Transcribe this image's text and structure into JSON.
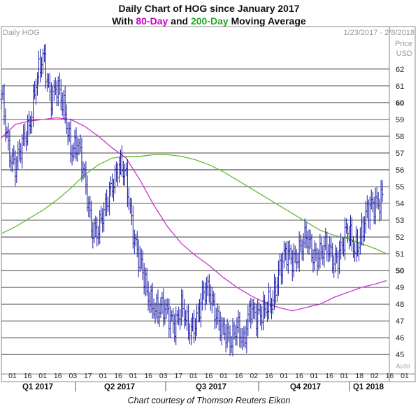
{
  "header": {
    "title_line1": "Daily Chart of HOG since January 2017",
    "title_line2_pre": "With ",
    "title_line2_ma80": "80-Day",
    "title_line2_mid": " and ",
    "title_line2_ma200": "200-Day",
    "title_line2_post": " Moving Average"
  },
  "caption": "Chart courtesy of Thomson Reuters Eikon",
  "colors": {
    "price_bars": "#1a1aa8",
    "ma80": "#cc33cc",
    "ma200": "#66bb33",
    "grid": "#222222",
    "title_ma80": "#cc00cc",
    "title_ma200": "#22aa22"
  },
  "chart_data": {
    "type": "line",
    "symbol_label": "Daily HOG",
    "date_range_label": "1/23/2017 - 2/8/2018",
    "price_label": "Price",
    "currency_label": "USD",
    "auto_label": "Auto",
    "ylim": [
      44.3,
      63.7
    ],
    "grid": true,
    "y_ticks": [
      45,
      46,
      47,
      48,
      49,
      50,
      51,
      52,
      53,
      54,
      55,
      56,
      57,
      58,
      59,
      60,
      61,
      62
    ],
    "bold_y_ticks": [
      50,
      60
    ],
    "x_ticks": [
      "01",
      "16",
      "01",
      "16",
      "03",
      "17",
      "01",
      "16",
      "01",
      "16",
      "03",
      "17",
      "01",
      "16",
      "01",
      "16",
      "02",
      "16",
      "01",
      "16",
      "01",
      "16",
      "01",
      "18",
      "02",
      "16",
      "01"
    ],
    "quarter_labels": [
      "Q1 2017",
      "Q2 2017",
      "Q3 2017",
      "Q4 2017",
      "Q1 2018"
    ],
    "series": [
      {
        "name": "Daily HOG",
        "style": "bars",
        "x": [
          0,
          5,
          10,
          15,
          20,
          25,
          30,
          35,
          40,
          45,
          50,
          55,
          60,
          65,
          70,
          75,
          80,
          85,
          90,
          95,
          100,
          105,
          110,
          115,
          120,
          125,
          130,
          135,
          140,
          145,
          150,
          155,
          160,
          165,
          170,
          175,
          180,
          185,
          190,
          195,
          200,
          205,
          210,
          215,
          220,
          225,
          230,
          235,
          240,
          245,
          250,
          255,
          260,
          265,
          270,
          275
        ],
        "y": [
          60.2,
          57.3,
          56.5,
          57.2,
          58.6,
          61.5,
          62.4,
          60.5,
          61.2,
          59.4,
          57.4,
          57.8,
          55.2,
          52.8,
          52.5,
          53.4,
          55.4,
          56.4,
          55.2,
          52.6,
          50.6,
          48.4,
          48.1,
          47.7,
          47.2,
          47.1,
          47.7,
          46.3,
          47.2,
          48.3,
          48.7,
          47.7,
          46.1,
          45.7,
          47.1,
          45.4,
          47.8,
          47.6,
          47.3,
          48.1,
          50.1,
          50.7,
          50.7,
          51.4,
          51.7,
          51.0,
          51.2,
          51.1,
          50.7,
          51.4,
          52.1,
          51.5,
          52.3,
          53.4,
          54.3,
          54.4
        ]
      },
      {
        "name": "80-Day",
        "style": "line",
        "x": [
          0,
          10,
          20,
          30,
          40,
          50,
          60,
          70,
          80,
          90,
          100,
          110,
          120,
          130,
          140,
          150,
          160,
          170,
          180,
          190,
          200,
          210,
          220,
          230,
          240,
          250,
          260,
          270,
          278
        ],
        "y": [
          57.9,
          58.7,
          58.9,
          59.0,
          59.1,
          59.0,
          58.6,
          58.0,
          57.3,
          56.7,
          55.4,
          53.9,
          52.6,
          51.6,
          50.9,
          50.3,
          49.6,
          49.0,
          48.5,
          48.1,
          47.8,
          47.6,
          47.8,
          48.0,
          48.4,
          48.7,
          49.0,
          49.2,
          49.4
        ]
      },
      {
        "name": "200-Day",
        "style": "line",
        "x": [
          0,
          10,
          20,
          30,
          40,
          50,
          60,
          70,
          80,
          90,
          100,
          110,
          120,
          130,
          140,
          150,
          160,
          170,
          180,
          190,
          200,
          210,
          220,
          230,
          240,
          250,
          260,
          270,
          278
        ],
        "y": [
          52.2,
          52.6,
          53.1,
          53.6,
          54.2,
          54.9,
          55.7,
          56.3,
          56.7,
          56.8,
          56.8,
          56.9,
          56.9,
          56.8,
          56.6,
          56.3,
          55.9,
          55.4,
          54.9,
          54.4,
          53.9,
          53.4,
          52.9,
          52.4,
          52.1,
          51.9,
          51.6,
          51.3,
          51.0
        ]
      }
    ]
  }
}
